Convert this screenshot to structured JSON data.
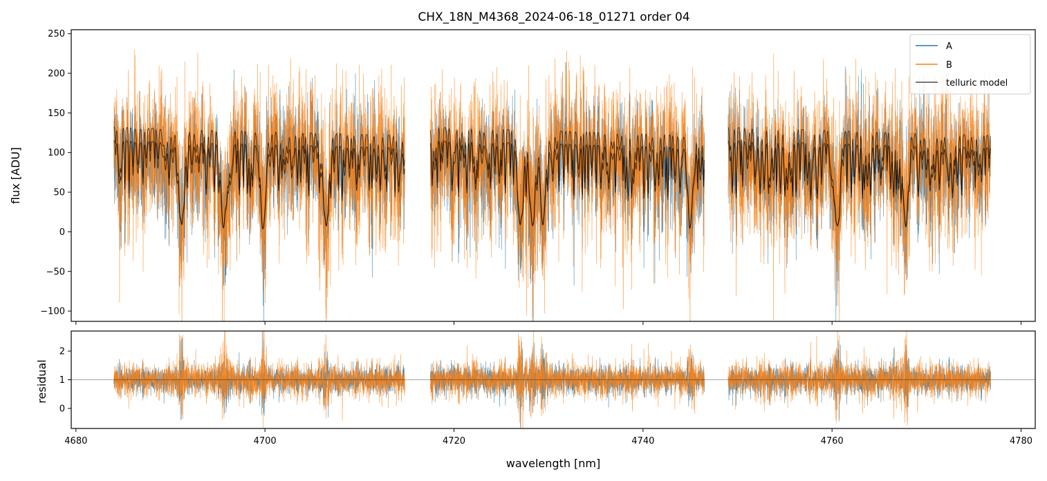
{
  "chart_data": [
    {
      "type": "line",
      "panel": "flux",
      "title": "CHX_18N_M4368_2024-06-18_01271  order 04",
      "xlabel": "",
      "ylabel": "flux [ADU]",
      "xlim": [
        4679.5,
        4781.5
      ],
      "ylim": [
        -113,
        255
      ],
      "xticks": [
        4680,
        4700,
        4720,
        4740,
        4760,
        4780
      ],
      "yticks": [
        -100,
        -50,
        0,
        50,
        100,
        150,
        200,
        250
      ],
      "ytick_labels": [
        "−100",
        "−50",
        "0",
        "50",
        "100",
        "150",
        "200",
        "250"
      ],
      "x_segments": [
        [
          4684.0,
          4714.8
        ],
        [
          4717.5,
          4746.5
        ],
        [
          4749.0,
          4776.8
        ]
      ],
      "legend": {
        "placement": "upper-right",
        "entries": [
          "A",
          "B",
          "telluric model"
        ]
      },
      "series": [
        {
          "name": "A",
          "color": "#1f77b4",
          "continuum": 110,
          "noise": 30
        },
        {
          "name": "B",
          "color": "#ff7f0e",
          "continuum": 115,
          "noise": 40
        },
        {
          "name": "telluric model",
          "color": "#000000",
          "continuum_levels": [
            115,
            132
          ],
          "dip_depth_typical": 60
        }
      ]
    },
    {
      "type": "line",
      "panel": "residual",
      "xlabel": "wavelength [nm]",
      "ylabel": "residual",
      "xlim": [
        4679.5,
        4781.5
      ],
      "ylim": [
        -0.7,
        2.7
      ],
      "xticks": [
        4680,
        4700,
        4720,
        4740,
        4760,
        4780
      ],
      "yticks": [
        0,
        1,
        2
      ],
      "ytick_labels": [
        "0",
        "1",
        "2"
      ],
      "reference_line": 1,
      "series": [
        {
          "name": "A",
          "color": "#1f77b4",
          "center": 1,
          "noise": 0.2
        },
        {
          "name": "B",
          "color": "#ff7f0e",
          "center": 1,
          "noise": 0.25
        }
      ]
    }
  ]
}
